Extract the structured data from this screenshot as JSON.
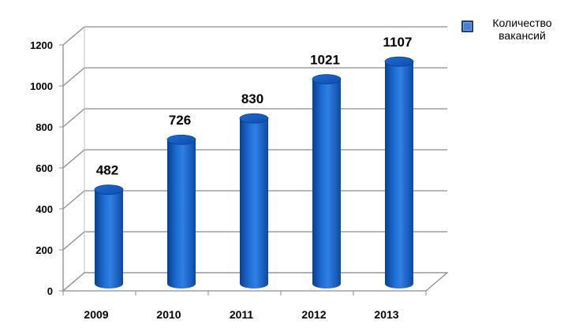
{
  "chart_data": {
    "type": "bar",
    "categories": [
      "2009",
      "2010",
      "2011",
      "2012",
      "2013"
    ],
    "series": [
      {
        "name": "Количество вакансий",
        "values": [
          482,
          726,
          830,
          1021,
          1107
        ]
      }
    ],
    "data_labels": [
      "482",
      "726",
      "830",
      "1021",
      "1107"
    ],
    "y_ticks": [
      "0",
      "200",
      "400",
      "600",
      "800",
      "1000",
      "1200"
    ],
    "ylim": [
      0,
      1200
    ],
    "grid": true,
    "legend_position": "top-right",
    "style": "3d-cylinder",
    "bar_color": "#1a5fbf",
    "title": "",
    "xlabel": "",
    "ylabel": ""
  },
  "legend": {
    "line1": "Количество",
    "line2": "вакансий",
    "swatch_color": "#4a7fd0"
  }
}
